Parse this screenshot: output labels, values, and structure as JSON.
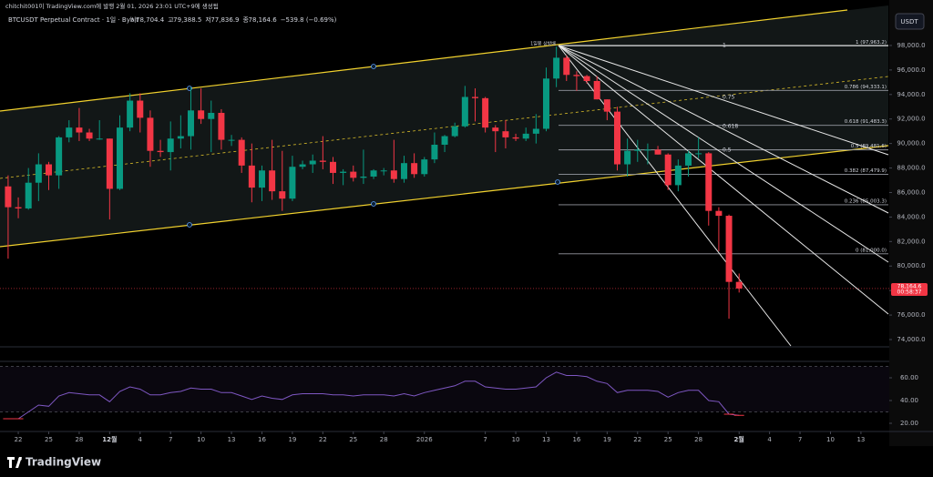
{
  "publisher_note": "chitchit001이 TradingView.com에 발행 2월 01, 2026 23:01 UTC+9에 생성됨",
  "chart_data": {
    "type": "candlestick",
    "title": "BTCUSDT Perpetual Contract · 1일 · Bybit",
    "ohlc_names": [
      "시",
      "고",
      "저",
      "종"
    ],
    "ohlc_labels": [
      "78,704.4",
      "79,388.5",
      "77,836.9",
      "78,164.6"
    ],
    "change_label": "−539.8 (−0.69%)",
    "currency": "USDT",
    "annotation": "1일봉 상방배",
    "last_price_label": "78,164.6",
    "countdown": "00:58:37",
    "up_color": "#089981",
    "down_color": "#f23645",
    "candles": [
      [
        86500,
        87400,
        80600,
        84800
      ],
      [
        84800,
        85600,
        83900,
        84700
      ],
      [
        84700,
        88000,
        84600,
        86800
      ],
      [
        86800,
        89200,
        85300,
        88300
      ],
      [
        88300,
        88500,
        86200,
        87400
      ],
      [
        87400,
        90600,
        86300,
        90500
      ],
      [
        90500,
        91900,
        90100,
        91300
      ],
      [
        91300,
        92900,
        90200,
        90900
      ],
      [
        90900,
        91200,
        90200,
        90400
      ],
      [
        90400,
        91900,
        90300,
        90400
      ],
      [
        90400,
        90400,
        83800,
        86300
      ],
      [
        86300,
        92300,
        86200,
        91300
      ],
      [
        91300,
        94100,
        91000,
        93500
      ],
      [
        93500,
        94100,
        90900,
        92100
      ],
      [
        92100,
        92700,
        88100,
        89400
      ],
      [
        89400,
        90300,
        88900,
        89300
      ],
      [
        89300,
        91800,
        87800,
        90400
      ],
      [
        90400,
        92300,
        89600,
        90600
      ],
      [
        90600,
        94600,
        89500,
        92700
      ],
      [
        92700,
        94500,
        91600,
        92000
      ],
      [
        92000,
        93500,
        89300,
        92500
      ],
      [
        92500,
        92800,
        89500,
        90300
      ],
      [
        90300,
        90700,
        89800,
        90300
      ],
      [
        90300,
        90500,
        87600,
        88200
      ],
      [
        88200,
        90000,
        85200,
        86400
      ],
      [
        86400,
        88200,
        85300,
        87800
      ],
      [
        87800,
        90300,
        85400,
        86100
      ],
      [
        86100,
        89400,
        84500,
        85500
      ],
      [
        85500,
        89000,
        85300,
        88100
      ],
      [
        88100,
        88600,
        87900,
        88300
      ],
      [
        88300,
        89100,
        87600,
        88600
      ],
      [
        88600,
        90600,
        87900,
        88500
      ],
      [
        88500,
        88900,
        86700,
        87600
      ],
      [
        87600,
        87900,
        86600,
        87700
      ],
      [
        87700,
        88200,
        86900,
        87200
      ],
      [
        87200,
        89500,
        86700,
        87300
      ],
      [
        87300,
        87900,
        87100,
        87800
      ],
      [
        87800,
        88000,
        87400,
        87800
      ],
      [
        87800,
        90300,
        86800,
        87100
      ],
      [
        87100,
        89000,
        86800,
        88400
      ],
      [
        88400,
        89200,
        87200,
        87500
      ],
      [
        87500,
        88900,
        87300,
        88700
      ],
      [
        88700,
        90900,
        88400,
        89900
      ],
      [
        89900,
        90700,
        89300,
        90600
      ],
      [
        90600,
        91700,
        90500,
        91400
      ],
      [
        91400,
        94700,
        91300,
        93800
      ],
      [
        93800,
        94500,
        91800,
        93700
      ],
      [
        93700,
        93800,
        90900,
        91300
      ],
      [
        91300,
        91500,
        89300,
        91000
      ],
      [
        91000,
        91900,
        89600,
        90500
      ],
      [
        90500,
        90800,
        90200,
        90400
      ],
      [
        90400,
        91300,
        90200,
        90800
      ],
      [
        90800,
        92400,
        90000,
        91200
      ],
      [
        91200,
        96200,
        91000,
        95300
      ],
      [
        95300,
        97900,
        94600,
        97000
      ],
      [
        97000,
        97200,
        95100,
        95600
      ],
      [
        95600,
        95900,
        94300,
        95500
      ],
      [
        95500,
        95600,
        94900,
        95100
      ],
      [
        95100,
        95500,
        93600,
        93600
      ],
      [
        93600,
        93600,
        91900,
        92600
      ],
      [
        92600,
        93000,
        87800,
        88300
      ],
      [
        88300,
        90400,
        87300,
        89400
      ],
      [
        89400,
        90300,
        88500,
        89500
      ],
      [
        89500,
        90000,
        88300,
        89500
      ],
      [
        89500,
        89800,
        89100,
        89100
      ],
      [
        89100,
        89200,
        86200,
        86600
      ],
      [
        86600,
        88700,
        86100,
        88200
      ],
      [
        88200,
        89400,
        87300,
        89200
      ],
      [
        89200,
        90500,
        88800,
        89200
      ],
      [
        89200,
        89300,
        83300,
        84500
      ],
      [
        84500,
        84800,
        81200,
        84100
      ],
      [
        84100,
        84200,
        75700,
        78704.4
      ],
      [
        78704.4,
        79388.5,
        77836.9,
        78164.6
      ]
    ],
    "xlim": [
      -0.8,
      86.7
    ],
    "xticks": [
      {
        "value": 1,
        "label": "22"
      },
      {
        "value": 4,
        "label": "25"
      },
      {
        "value": 7,
        "label": "28"
      },
      {
        "value": 10,
        "label": "12월"
      },
      {
        "value": 13,
        "label": "4"
      },
      {
        "value": 16,
        "label": "7"
      },
      {
        "value": 19,
        "label": "10"
      },
      {
        "value": 22,
        "label": "13"
      },
      {
        "value": 25,
        "label": "16"
      },
      {
        "value": 28,
        "label": "19"
      },
      {
        "value": 31,
        "label": "22"
      },
      {
        "value": 34,
        "label": "25"
      },
      {
        "value": 37,
        "label": "28"
      },
      {
        "value": 41,
        "label": "2026"
      },
      {
        "value": 47,
        "label": "7"
      },
      {
        "value": 50,
        "label": "10"
      },
      {
        "value": 53,
        "label": "13"
      },
      {
        "value": 56,
        "label": "16"
      },
      {
        "value": 59,
        "label": "19"
      },
      {
        "value": 62,
        "label": "22"
      },
      {
        "value": 65,
        "label": "25"
      },
      {
        "value": 68,
        "label": "28"
      },
      {
        "value": 72,
        "label": "2월"
      },
      {
        "value": 75,
        "label": "4"
      },
      {
        "value": 78,
        "label": "7"
      },
      {
        "value": 81,
        "label": "10"
      },
      {
        "value": 84,
        "label": "13"
      }
    ],
    "ylim": [
      73480,
      100820
    ],
    "yticks": [
      {
        "value": 98000,
        "label": "98,000.0"
      },
      {
        "value": 96000,
        "label": "96,000.0"
      },
      {
        "value": 94000,
        "label": "94,000.0"
      },
      {
        "value": 92000,
        "label": "92,000.0"
      },
      {
        "value": 90000,
        "label": "90,000.0"
      },
      {
        "value": 88000,
        "label": "88,000.0"
      },
      {
        "value": 86000,
        "label": "86,000.0"
      },
      {
        "value": 84000,
        "label": "84,000.0"
      },
      {
        "value": 82000,
        "label": "82,000.0"
      },
      {
        "value": 80000,
        "label": "80,000.0"
      },
      {
        "value": 78000,
        "label": "78,000.0"
      },
      {
        "value": 76000,
        "label": "76,000.0"
      },
      {
        "value": 74000,
        "label": "74,000.0"
      }
    ],
    "fib": [
      {
        "price": 97963.2,
        "label": "1 (97,963.2)"
      },
      {
        "price": 94333.1,
        "label": "0.786 (94,333.1)"
      },
      {
        "price": 91483.3,
        "label": "0.618 (91,483.3)"
      },
      {
        "price": 89481.6,
        "label": "0.5 (89,481.6)"
      },
      {
        "price": 87479.9,
        "label": "0.382 (87,479.9)"
      },
      {
        "price": 85003.3,
        "label": "0.236 (85,003.3)"
      },
      {
        "price": 81000.0,
        "label": "0 (81,000.0)"
      }
    ],
    "fan_labels": [
      "1",
      "0.75",
      "0.618",
      "0.5"
    ],
    "rsi": {
      "color": "#7e57c2",
      "values": [
        24,
        24,
        30,
        36,
        35,
        44,
        47,
        46,
        45,
        45,
        39,
        48,
        52,
        50,
        45,
        45,
        47,
        48,
        51,
        50,
        50,
        47,
        47,
        44,
        41,
        44,
        42,
        41,
        45,
        46,
        46,
        46,
        45,
        45,
        44,
        45,
        45,
        45,
        44,
        46,
        44,
        47,
        49,
        51,
        53,
        57,
        57,
        52,
        51,
        50,
        50,
        51,
        52,
        60,
        65,
        62,
        62,
        61,
        57,
        55,
        47,
        49,
        49,
        49,
        48,
        43,
        47,
        49,
        49,
        40,
        39,
        28,
        27
      ],
      "ylim": [
        16,
        72
      ],
      "bands": [
        30,
        70
      ],
      "yticks": [
        {
          "value": 60,
          "label": "60.00"
        },
        {
          "value": 40,
          "label": "40.00"
        },
        {
          "value": 20,
          "label": "20.00"
        }
      ]
    }
  },
  "brand": "TradingView"
}
